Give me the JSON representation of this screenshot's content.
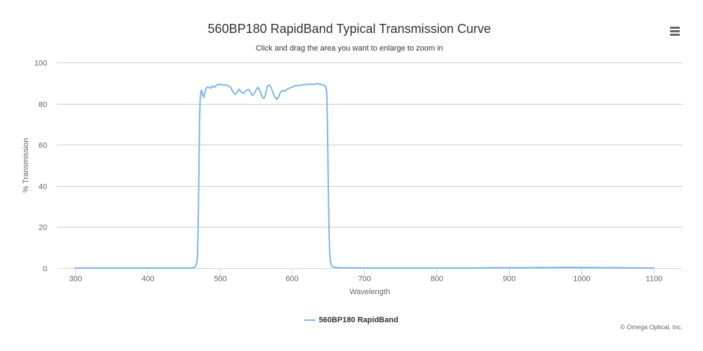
{
  "title": "560BP180 RapidBand Typical Transmission Curve",
  "subtitle": "Click and drag the area you want to enlarge to zoom in",
  "menu_icon": "hamburger-menu-icon",
  "credits": "© Omega Optical, Inc.",
  "colors": {
    "series": "#7cb5ec",
    "grid": "#cccccc",
    "axis_line": "#ccd6eb",
    "text": "#333333",
    "tick_text": "#666666"
  },
  "chart_data": {
    "type": "line",
    "title": "560BP180 RapidBand Typical Transmission Curve",
    "subtitle": "Click and drag the area you want to enlarge to zoom in",
    "xlabel": "Wavelength",
    "ylabel": "% Transmission",
    "xlim": [
      275,
      1140
    ],
    "ylim": [
      0,
      100
    ],
    "x_ticks": [
      300,
      400,
      500,
      600,
      700,
      800,
      900,
      1000,
      1100
    ],
    "y_ticks": [
      0,
      20,
      40,
      60,
      80,
      100
    ],
    "grid": "horizontal",
    "legend_position": "bottom-center",
    "series": [
      {
        "name": "560BP180 RapidBand",
        "points": [
          [
            300,
            0.1
          ],
          [
            400,
            0.1
          ],
          [
            460,
            0.1
          ],
          [
            465,
            0.3
          ],
          [
            467,
            1.0
          ],
          [
            469,
            4.0
          ],
          [
            470,
            15.0
          ],
          [
            471,
            40.0
          ],
          [
            472,
            70.0
          ],
          [
            473,
            82.0
          ],
          [
            474,
            86.0
          ],
          [
            475,
            86.5
          ],
          [
            476,
            85.0
          ],
          [
            478,
            83.0
          ],
          [
            480,
            86.0
          ],
          [
            482,
            88.0
          ],
          [
            485,
            88.0
          ],
          [
            488,
            87.5
          ],
          [
            490,
            88.5
          ],
          [
            493,
            88.0
          ],
          [
            496,
            89.0
          ],
          [
            500,
            89.5
          ],
          [
            505,
            89.0
          ],
          [
            510,
            89.0
          ],
          [
            515,
            88.0
          ],
          [
            518,
            86.0
          ],
          [
            520,
            85.0
          ],
          [
            522,
            84.5
          ],
          [
            525,
            86.0
          ],
          [
            527,
            87.0
          ],
          [
            530,
            85.5
          ],
          [
            533,
            85.0
          ],
          [
            537,
            86.5
          ],
          [
            540,
            87.0
          ],
          [
            543,
            85.5
          ],
          [
            545,
            84.0
          ],
          [
            547,
            84.5
          ],
          [
            550,
            86.5
          ],
          [
            553,
            88.0
          ],
          [
            556,
            86.0
          ],
          [
            559,
            83.0
          ],
          [
            561,
            82.5
          ],
          [
            563,
            84.0
          ],
          [
            566,
            88.5
          ],
          [
            569,
            89.0
          ],
          [
            572,
            87.0
          ],
          [
            575,
            84.0
          ],
          [
            577,
            83.0
          ],
          [
            579,
            82.0
          ],
          [
            581,
            83.0
          ],
          [
            584,
            85.5
          ],
          [
            587,
            86.5
          ],
          [
            590,
            86.0
          ],
          [
            593,
            87.0
          ],
          [
            596,
            87.5
          ],
          [
            600,
            88.0
          ],
          [
            603,
            88.5
          ],
          [
            605,
            88.8
          ],
          [
            608,
            88.7
          ],
          [
            612,
            89.0
          ],
          [
            616,
            89.2
          ],
          [
            620,
            89.3
          ],
          [
            625,
            89.5
          ],
          [
            630,
            89.3
          ],
          [
            635,
            89.7
          ],
          [
            640,
            89.4
          ],
          [
            644,
            89.0
          ],
          [
            646,
            88.5
          ],
          [
            648,
            86.0
          ],
          [
            649,
            70.0
          ],
          [
            650,
            45.0
          ],
          [
            651,
            20.0
          ],
          [
            652,
            8.0
          ],
          [
            653,
            3.0
          ],
          [
            655,
            1.0
          ],
          [
            658,
            0.4
          ],
          [
            665,
            0.2
          ],
          [
            700,
            0.1
          ],
          [
            800,
            0.1
          ],
          [
            850,
            0.1
          ],
          [
            880,
            0.2
          ],
          [
            920,
            0.2
          ],
          [
            960,
            0.3
          ],
          [
            980,
            0.4
          ],
          [
            1000,
            0.3
          ],
          [
            1050,
            0.2
          ],
          [
            1100,
            0.1
          ]
        ]
      }
    ]
  }
}
